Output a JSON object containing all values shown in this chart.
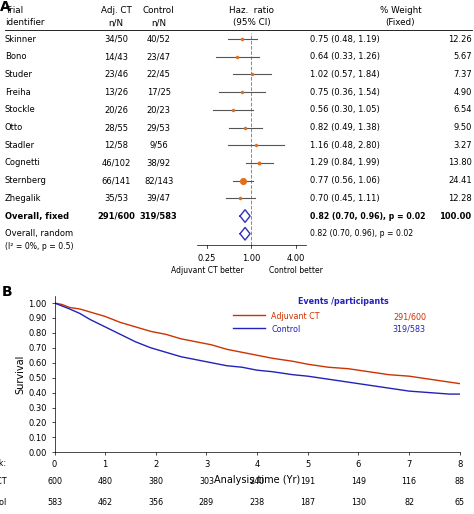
{
  "forest": {
    "trials": [
      "Skinner",
      "Bono",
      "Studer",
      "Freiha",
      "Stockle",
      "Otto",
      "Stadler",
      "Cognetti",
      "Sternberg",
      "Zhegalik"
    ],
    "adj_ct": [
      "34/50",
      "14/43",
      "23/46",
      "13/26",
      "20/26",
      "28/55",
      "12/58",
      "46/102",
      "66/141",
      "35/53"
    ],
    "control": [
      "40/52",
      "23/47",
      "22/45",
      "17/25",
      "20/23",
      "29/53",
      "9/56",
      "38/92",
      "82/143",
      "39/47"
    ],
    "hr": [
      0.75,
      0.64,
      1.02,
      0.75,
      0.56,
      0.82,
      1.16,
      1.29,
      0.77,
      0.7
    ],
    "ci_low": [
      0.48,
      0.33,
      0.57,
      0.36,
      0.3,
      0.49,
      0.48,
      0.84,
      0.56,
      0.45
    ],
    "ci_high": [
      1.19,
      1.26,
      1.84,
      1.54,
      1.05,
      1.38,
      2.8,
      1.99,
      1.06,
      1.11
    ],
    "weight": [
      12.26,
      5.67,
      7.37,
      4.9,
      6.54,
      9.5,
      3.27,
      13.8,
      24.41,
      12.28
    ],
    "hr_text": [
      "0.75 (0.48, 1.19)",
      "0.64 (0.33, 1.26)",
      "1.02 (0.57, 1.84)",
      "0.75 (0.36, 1.54)",
      "0.56 (0.30, 1.05)",
      "0.82 (0.49, 1.38)",
      "1.16 (0.48, 2.80)",
      "1.29 (0.84, 1.99)",
      "0.77 (0.56, 1.06)",
      "0.70 (0.45, 1.11)"
    ],
    "weight_text": [
      "12.26",
      "5.67",
      "7.37",
      "4.90",
      "6.54",
      "9.50",
      "3.27",
      "13.80",
      "24.41",
      "12.28"
    ],
    "overall_fixed_hr": 0.82,
    "overall_fixed_ci_low": 0.7,
    "overall_fixed_ci_high": 0.96,
    "overall_fixed_text": "0.82 (0.70, 0.96), p = 0.02",
    "overall_random_text": "0.82 (0.70, 0.96), p = 0.02",
    "overall_adj_ct": "291/600",
    "overall_control": "319/583",
    "marker_color": "#E07020",
    "diamond_color": "#3030BB",
    "ci_line_color": "#555555",
    "ref_line_color": "#AAAAAA"
  },
  "km": {
    "adj_ct_color": "#CC3300",
    "control_color": "#2222BB",
    "xlabel": "Analysis time (Yr)",
    "ylabel": "Survival",
    "xlim": [
      0,
      8
    ],
    "ylim": [
      0.0,
      1.05
    ],
    "yticks": [
      0.0,
      0.1,
      0.2,
      0.3,
      0.4,
      0.5,
      0.6,
      0.7,
      0.8,
      0.9,
      1.0
    ],
    "xticks": [
      0,
      1,
      2,
      3,
      4,
      5,
      6,
      7,
      8
    ],
    "at_risk_adj": [
      600,
      480,
      380,
      303,
      240,
      191,
      149,
      116,
      88
    ],
    "at_risk_control": [
      583,
      462,
      356,
      289,
      238,
      187,
      130,
      82,
      65
    ],
    "t_adj": [
      0,
      0.15,
      0.3,
      0.5,
      0.7,
      1.0,
      1.3,
      1.6,
      1.9,
      2.2,
      2.5,
      2.8,
      3.1,
      3.4,
      3.7,
      4.0,
      4.3,
      4.7,
      5.0,
      5.4,
      5.8,
      6.2,
      6.6,
      7.0,
      7.4,
      7.8,
      8.0
    ],
    "s_adj": [
      1.0,
      0.99,
      0.97,
      0.96,
      0.94,
      0.91,
      0.87,
      0.84,
      0.81,
      0.79,
      0.76,
      0.74,
      0.72,
      0.69,
      0.67,
      0.65,
      0.63,
      0.61,
      0.59,
      0.57,
      0.56,
      0.54,
      0.52,
      0.51,
      0.49,
      0.47,
      0.46
    ],
    "t_ctrl": [
      0,
      0.15,
      0.3,
      0.5,
      0.7,
      1.0,
      1.3,
      1.6,
      1.9,
      2.2,
      2.5,
      2.8,
      3.1,
      3.4,
      3.7,
      4.0,
      4.3,
      4.7,
      5.0,
      5.4,
      5.8,
      6.2,
      6.6,
      7.0,
      7.4,
      7.8,
      8.0
    ],
    "s_ctrl": [
      1.0,
      0.98,
      0.96,
      0.93,
      0.89,
      0.84,
      0.79,
      0.74,
      0.7,
      0.67,
      0.64,
      0.62,
      0.6,
      0.58,
      0.57,
      0.55,
      0.54,
      0.52,
      0.51,
      0.49,
      0.47,
      0.45,
      0.43,
      0.41,
      0.4,
      0.39,
      0.39
    ]
  }
}
